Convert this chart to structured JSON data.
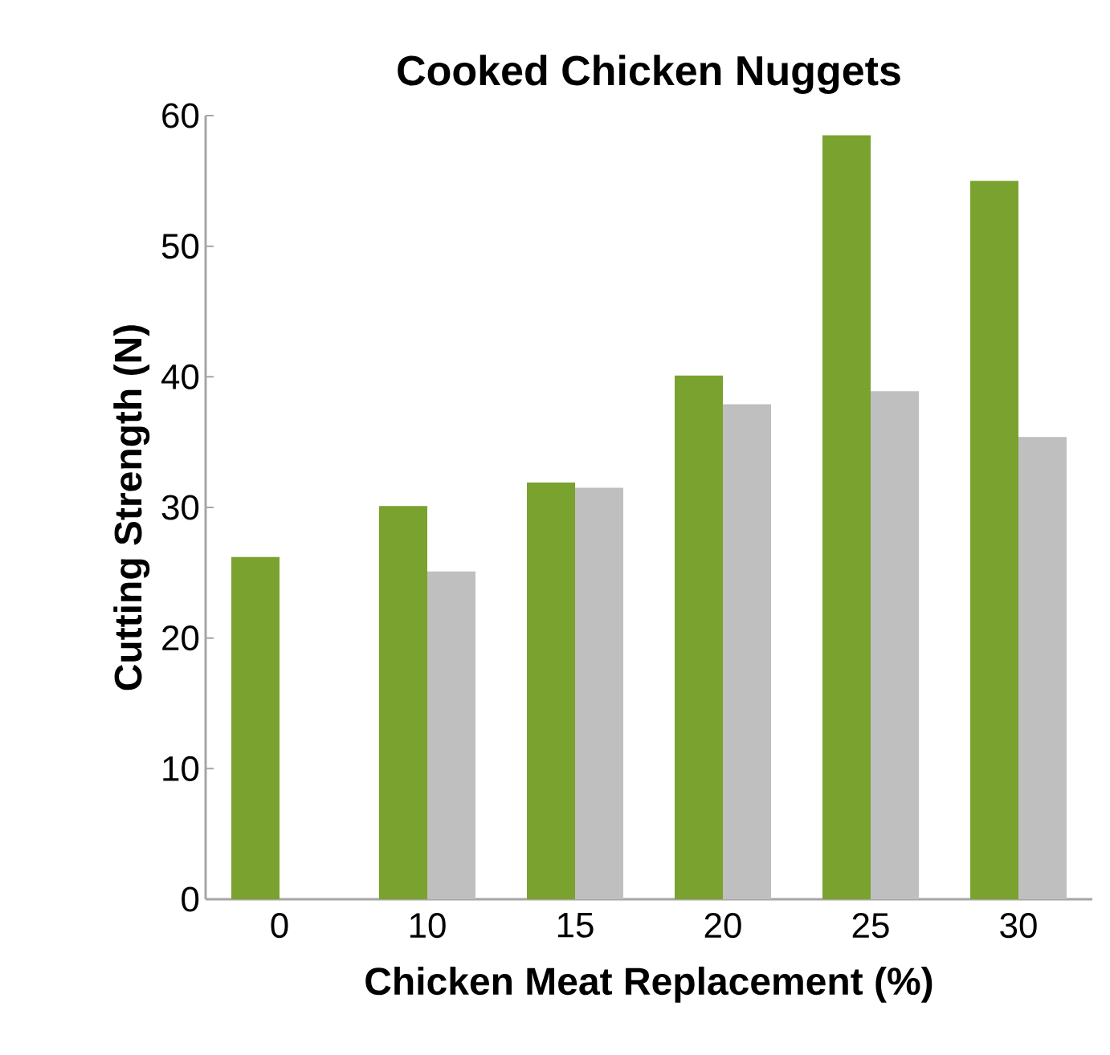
{
  "chart_data": {
    "type": "bar",
    "title": "Cooked Chicken Nuggets",
    "xlabel": "Chicken Meat Replacement (%)",
    "ylabel": "Cutting Strength (N)",
    "categories": [
      "0",
      "10",
      "15",
      "20",
      "25",
      "30"
    ],
    "series": [
      {
        "color": "#7aa22f",
        "values": [
          26.2,
          30.1,
          31.9,
          40.1,
          58.5,
          55
        ]
      },
      {
        "color": "#bfbfbf",
        "values": [
          null,
          25.1,
          31.5,
          37.9,
          38.9,
          35.4
        ]
      }
    ],
    "ylim": [
      0,
      60
    ],
    "yticks": [
      0,
      10,
      20,
      30,
      40,
      50,
      60
    ],
    "grid": false
  }
}
